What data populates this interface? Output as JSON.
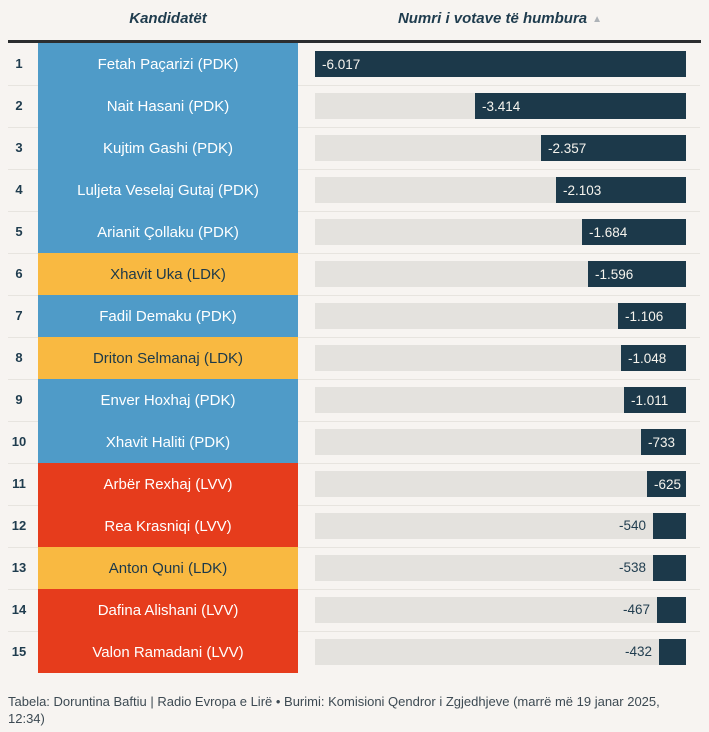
{
  "header": {
    "col_candidates": "Kandidatët",
    "col_votes": "Numri i votave të humbura",
    "sort_icon": "▲"
  },
  "colors": {
    "background": "#f7f4f1",
    "bar": "#1c394a",
    "track": "#e4e2de",
    "rule": "#2b2d2f",
    "header_text": "#1f3c4e",
    "party_bg": {
      "PDK": "#4f9bc8",
      "LDK": "#f9b941",
      "LVV": "#e63c1c"
    },
    "party_text": {
      "PDK": "#ffffff",
      "LDK": "#1c394a",
      "LVV": "#ffffff"
    }
  },
  "chart_data": {
    "type": "bar",
    "orientation": "horizontal",
    "title": "",
    "column_headers": [
      "Kandidatët",
      "Numri i votave të humbura"
    ],
    "sort": "ascending",
    "xlim": [
      -6017,
      0
    ],
    "max_abs": 6017,
    "categories": [
      "Fetah Paçarizi (PDK)",
      "Nait Hasani (PDK)",
      "Kujtim Gashi (PDK)",
      "Luljeta Veselaj Gutaj (PDK)",
      "Arianit Çollaku (PDK)",
      "Xhavit Uka (LDK)",
      "Fadil Demaku (PDK)",
      "Driton Selmanaj (LDK)",
      "Enver Hoxhaj (PDK)",
      "Xhavit Haliti (PDK)",
      "Arbër Rexhaj (LVV)",
      "Rea Krasniqi (LVV)",
      "Anton Quni (LDK)",
      "Dafina Alishani (LVV)",
      "Valon Ramadani (LVV)"
    ],
    "values": [
      -6017,
      -3414,
      -2357,
      -2103,
      -1684,
      -1596,
      -1106,
      -1048,
      -1011,
      -733,
      -625,
      -540,
      -538,
      -467,
      -432
    ],
    "value_labels": [
      "-6.017",
      "-3.414",
      "-2.357",
      "-2.103",
      "-1.684",
      "-1.596",
      "-1.106",
      "-1.048",
      "-1.011",
      "-733",
      "-625",
      "-540",
      "-538",
      "-467",
      "-432"
    ]
  },
  "rows": [
    {
      "rank": "1",
      "name": "Fetah Paçarizi (PDK)",
      "party": "PDK",
      "value": -6017,
      "label": "-6.017",
      "label_inside": true
    },
    {
      "rank": "2",
      "name": "Nait Hasani (PDK)",
      "party": "PDK",
      "value": -3414,
      "label": "-3.414",
      "label_inside": true
    },
    {
      "rank": "3",
      "name": "Kujtim Gashi (PDK)",
      "party": "PDK",
      "value": -2357,
      "label": "-2.357",
      "label_inside": true
    },
    {
      "rank": "4",
      "name": "Luljeta Veselaj Gutaj (PDK)",
      "party": "PDK",
      "value": -2103,
      "label": "-2.103",
      "label_inside": true
    },
    {
      "rank": "5",
      "name": "Arianit Çollaku (PDK)",
      "party": "PDK",
      "value": -1684,
      "label": "-1.684",
      "label_inside": true
    },
    {
      "rank": "6",
      "name": "Xhavit Uka (LDK)",
      "party": "LDK",
      "value": -1596,
      "label": "-1.596",
      "label_inside": true
    },
    {
      "rank": "7",
      "name": "Fadil Demaku (PDK)",
      "party": "PDK",
      "value": -1106,
      "label": "-1.106",
      "label_inside": true
    },
    {
      "rank": "8",
      "name": "Driton Selmanaj (LDK)",
      "party": "LDK",
      "value": -1048,
      "label": "-1.048",
      "label_inside": true
    },
    {
      "rank": "9",
      "name": "Enver Hoxhaj (PDK)",
      "party": "PDK",
      "value": -1011,
      "label": "-1.011",
      "label_inside": true
    },
    {
      "rank": "10",
      "name": "Xhavit Haliti (PDK)",
      "party": "PDK",
      "value": -733,
      "label": "-733",
      "label_inside": true
    },
    {
      "rank": "11",
      "name": "Arbër Rexhaj (LVV)",
      "party": "LVV",
      "value": -625,
      "label": "-625",
      "label_inside": true
    },
    {
      "rank": "12",
      "name": "Rea Krasniqi (LVV)",
      "party": "LVV",
      "value": -540,
      "label": "-540",
      "label_inside": false
    },
    {
      "rank": "13",
      "name": "Anton Quni (LDK)",
      "party": "LDK",
      "value": -538,
      "label": "-538",
      "label_inside": false
    },
    {
      "rank": "14",
      "name": "Dafina Alishani (LVV)",
      "party": "LVV",
      "value": -467,
      "label": "-467",
      "label_inside": false
    },
    {
      "rank": "15",
      "name": "Valon Ramadani (LVV)",
      "party": "LVV",
      "value": -432,
      "label": "-432",
      "label_inside": false
    }
  ],
  "footer": {
    "text": "Tabela: Doruntina Baftiu | Radio Evropa e Lirë • Burimi: Komisioni Qendror i Zgjedhjeve (marrë më 19 janar 2025, 12:34)"
  }
}
